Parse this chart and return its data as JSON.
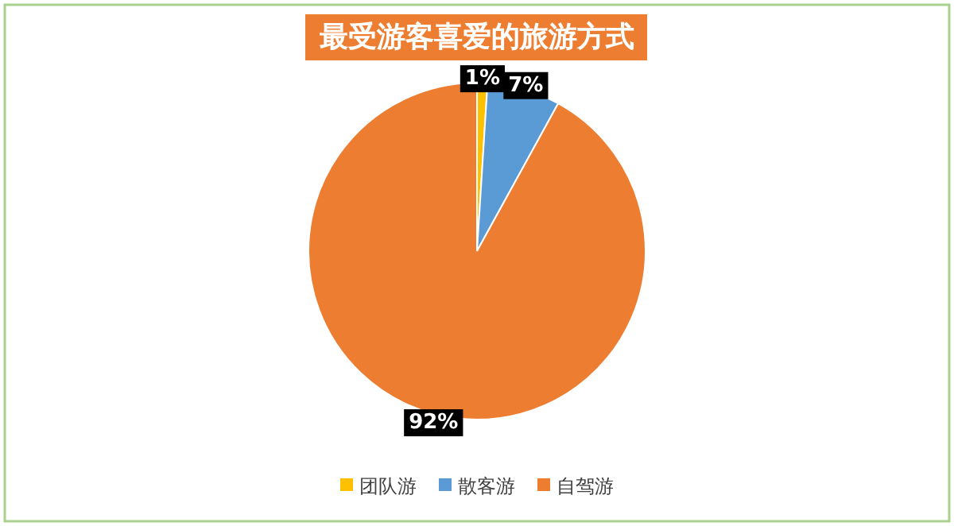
{
  "chart_data": {
    "type": "pie",
    "title": "最受游客喜爱的旅游方式",
    "categories": [
      "团队游",
      "散客游",
      "自驾游"
    ],
    "values": [
      1,
      7,
      92
    ],
    "colors": [
      "#ffc000",
      "#5b9bd5",
      "#ed7d31"
    ],
    "value_labels": [
      "1%",
      "7%",
      "92%"
    ],
    "legend": "bottom"
  }
}
